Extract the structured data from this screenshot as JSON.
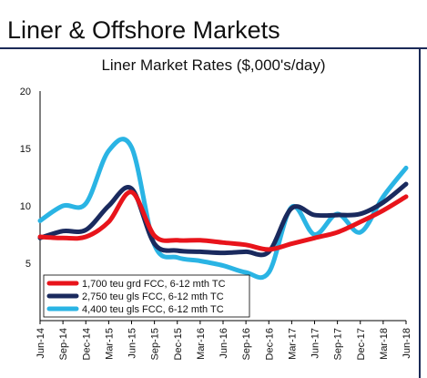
{
  "page_title": "Liner & Offshore Markets",
  "chart_data": {
    "type": "line",
    "title": "Liner Market Rates ($,000's/day)",
    "xlabel": "",
    "ylabel": "",
    "ylim": [
      0,
      20
    ],
    "yticks": [
      5,
      10,
      15,
      20
    ],
    "x": [
      "Jun-14",
      "Sep-14",
      "Dec-14",
      "Mar-15",
      "Jun-15",
      "Sep-15",
      "Dec-15",
      "Mar-16",
      "Jun-16",
      "Sep-16",
      "Dec-16",
      "Mar-17",
      "Jun-17",
      "Sep-17",
      "Dec-17",
      "Mar-18",
      "Jun-18"
    ],
    "grid": false,
    "legend_position": "bottom-left",
    "series": [
      {
        "name": "1,700 teu grd FCC, 6-12 mth TC",
        "color": "#e8141b",
        "values": [
          7.3,
          7.2,
          7.3,
          8.6,
          11.2,
          7.4,
          7.0,
          7.0,
          6.8,
          6.6,
          6.2,
          6.7,
          7.2,
          7.7,
          8.6,
          9.6,
          10.8
        ]
      },
      {
        "name": "2,750 teu gls FCC, 6-12 mth TC",
        "color": "#1a2a5e",
        "values": [
          7.2,
          7.8,
          7.9,
          10.0,
          11.5,
          6.7,
          6.1,
          6.0,
          5.9,
          6.0,
          6.0,
          9.8,
          9.2,
          9.2,
          9.3,
          10.3,
          11.9
        ]
      },
      {
        "name": "4,400 teu gls FCC, 6-12 mth TC",
        "color": "#2ab4e4",
        "values": [
          8.7,
          10.0,
          10.2,
          14.8,
          15.1,
          6.6,
          5.5,
          5.2,
          4.8,
          4.2,
          4.2,
          9.9,
          7.5,
          9.3,
          7.7,
          10.8,
          13.3
        ]
      }
    ]
  }
}
